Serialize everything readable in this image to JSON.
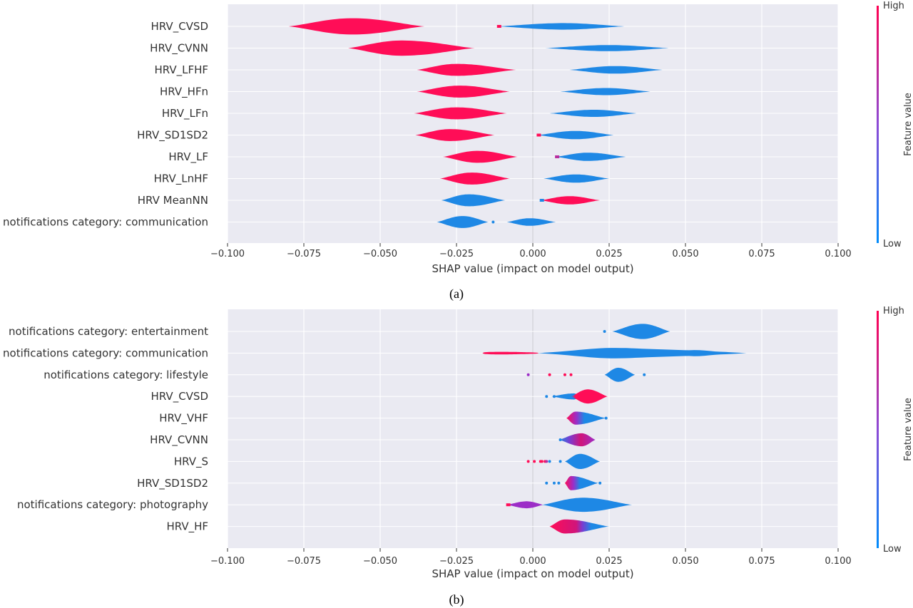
{
  "chart_data": [
    {
      "type": "violin",
      "caption": "(a)",
      "xlabel": "SHAP value (impact on model output)",
      "xlim": [
        -0.1,
        0.1
      ],
      "xticks": [
        -0.1,
        -0.075,
        -0.05,
        -0.025,
        0.0,
        0.025,
        0.05,
        0.075,
        0.1
      ],
      "xtick_labels": [
        "−0.100",
        "−0.075",
        "−0.050",
        "−0.025",
        "0.000",
        "0.025",
        "0.050",
        "0.075",
        "0.100"
      ],
      "colorbar": {
        "label": "Feature value",
        "high": "High",
        "low": "Low",
        "high_color": "#ff0052",
        "low_color": "#008bfb"
      },
      "features": [
        {
          "name": "HRV_CVSD",
          "parts": [
            {
              "min": -0.08,
              "max": -0.0355,
              "peak": -0.059,
              "width": 0.75,
              "color": "#ff0d57"
            },
            {
              "min": -0.0115,
              "max": 0.03,
              "peak": 0.01,
              "width": 0.3,
              "color": "#1e88e5",
              "tip": "#ff0d57"
            }
          ]
        },
        {
          "name": "HRV_CVNN",
          "parts": [
            {
              "min": -0.0605,
              "max": -0.019,
              "peak": -0.043,
              "width": 0.7,
              "color": "#ff0d57"
            },
            {
              "min": 0.004,
              "max": 0.0445,
              "peak": 0.025,
              "width": 0.28,
              "color": "#1e88e5"
            }
          ]
        },
        {
          "name": "HRV_LFHF",
          "parts": [
            {
              "min": -0.038,
              "max": -0.0055,
              "peak": -0.025,
              "width": 0.55,
              "color": "#ff0d57"
            },
            {
              "min": 0.012,
              "max": 0.0425,
              "peak": 0.027,
              "width": 0.35,
              "color": "#1e88e5"
            }
          ]
        },
        {
          "name": "HRV_HFn",
          "parts": [
            {
              "min": -0.038,
              "max": -0.0075,
              "peak": -0.024,
              "width": 0.55,
              "color": "#ff0d57"
            },
            {
              "min": 0.009,
              "max": 0.0385,
              "peak": 0.024,
              "width": 0.33,
              "color": "#1e88e5"
            }
          ]
        },
        {
          "name": "HRV_LFn",
          "parts": [
            {
              "min": -0.039,
              "max": -0.0085,
              "peak": -0.025,
              "width": 0.55,
              "color": "#ff0d57"
            },
            {
              "min": 0.0055,
              "max": 0.034,
              "peak": 0.02,
              "width": 0.33,
              "color": "#1e88e5"
            }
          ]
        },
        {
          "name": "HRV_SD1SD2",
          "parts": [
            {
              "min": -0.0385,
              "max": -0.0125,
              "peak": -0.027,
              "width": 0.55,
              "color": "#ff0d57"
            },
            {
              "min": 0.0015,
              "max": 0.0265,
              "peak": 0.014,
              "width": 0.38,
              "color": "#1e88e5",
              "tip": "#ff0d57"
            }
          ]
        },
        {
          "name": "HRV_LF",
          "parts": [
            {
              "min": -0.0295,
              "max": -0.005,
              "peak": -0.018,
              "width": 0.55,
              "color": "#ff0d57"
            },
            {
              "min": 0.0075,
              "max": 0.0305,
              "peak": 0.018,
              "width": 0.38,
              "color": "#1e88e5",
              "tip": "#b82d9f"
            }
          ]
        },
        {
          "name": "HRV_LnHF",
          "parts": [
            {
              "min": -0.0305,
              "max": -0.0075,
              "peak": -0.02,
              "width": 0.55,
              "color": "#ff0d57"
            },
            {
              "min": 0.0035,
              "max": 0.025,
              "peak": 0.014,
              "width": 0.38,
              "color": "#1e88e5"
            }
          ]
        },
        {
          "name": "HRV MeanNN",
          "parts": [
            {
              "min": -0.03,
              "max": -0.009,
              "peak": -0.021,
              "width": 0.55,
              "color": "#1e88e5"
            },
            {
              "min": 0.0025,
              "max": 0.022,
              "peak": 0.012,
              "width": 0.38,
              "color": "#ff0d57",
              "tip": "#1e88e5"
            }
          ]
        },
        {
          "name": "notifications category: communication",
          "parts": [
            {
              "min": -0.0315,
              "max": -0.0145,
              "peak": -0.023,
              "width": 0.55,
              "color": "#1e88e5"
            },
            {
              "min": -0.0085,
              "max": 0.0075,
              "peak": -0.001,
              "width": 0.35,
              "color": "#1e88e5"
            }
          ],
          "dots": [
            {
              "x": -0.013,
              "color": "#1e88e5"
            }
          ]
        }
      ]
    },
    {
      "type": "violin",
      "caption": "(b)",
      "xlabel": "SHAP value (impact on model output)",
      "xlim": [
        -0.1,
        0.1
      ],
      "xticks": [
        -0.1,
        -0.075,
        -0.05,
        -0.025,
        0.0,
        0.025,
        0.05,
        0.075,
        0.1
      ],
      "xtick_labels": [
        "−0.100",
        "−0.075",
        "−0.050",
        "−0.025",
        "0.000",
        "0.025",
        "0.050",
        "0.075",
        "0.100"
      ],
      "colorbar": {
        "label": "Feature value",
        "high": "High",
        "low": "Low",
        "high_color": "#ff0052",
        "low_color": "#008bfb"
      },
      "features": [
        {
          "name": "notifications category: entertainment",
          "parts": [
            {
              "min": 0.026,
              "max": 0.045,
              "peak": 0.036,
              "width": 0.7,
              "color": "#1e88e5"
            }
          ],
          "dots": [
            {
              "x": 0.0235,
              "color": "#1e88e5"
            }
          ]
        },
        {
          "name": "notifications category: communication",
          "parts": [
            {
              "min": -0.0165,
              "max": 0.002,
              "peak": -0.012,
              "width": 0.15,
              "color": "#ff0d57",
              "shape": "flat"
            },
            {
              "min": 0.0015,
              "max": 0.07,
              "peak": 0.022,
              "width": 0.55,
              "color": "#1e88e5",
              "shape": "wide"
            }
          ]
        },
        {
          "name": "notifications category: lifestyle",
          "parts": [
            {
              "min": 0.0235,
              "max": 0.0335,
              "peak": 0.028,
              "width": 0.65,
              "color": "#1e88e5"
            }
          ],
          "dots": [
            {
              "x": -0.0015,
              "color": "#9c2dc7"
            },
            {
              "x": 0.0055,
              "color": "#ff0d57"
            },
            {
              "x": 0.0105,
              "color": "#ff0d57"
            },
            {
              "x": 0.0125,
              "color": "#ff0d57"
            },
            {
              "x": 0.0365,
              "color": "#1e88e5"
            }
          ]
        },
        {
          "name": "HRV_CVSD",
          "parts": [
            {
              "min": 0.006,
              "max": 0.0155,
              "peak": 0.0135,
              "width": 0.28,
              "color": "#1e88e5"
            },
            {
              "min": 0.0125,
              "max": 0.0245,
              "peak": 0.018,
              "width": 0.65,
              "color": "#ff0d57",
              "grad": true
            }
          ],
          "dots": [
            {
              "x": 0.0045,
              "color": "#1e88e5"
            },
            {
              "x": 0.007,
              "color": "#1e88e5"
            }
          ]
        },
        {
          "name": "HRV_VHF",
          "parts": [
            {
              "min": 0.011,
              "max": 0.024,
              "peak": 0.014,
              "width": 0.6,
              "color": "#1e88e5",
              "grad": true,
              "reverse": true
            }
          ],
          "dots": [
            {
              "x": 0.024,
              "color": "#1e88e5"
            }
          ]
        },
        {
          "name": "HRV_CVNN",
          "parts": [
            {
              "min": 0.0085,
              "max": 0.0205,
              "peak": 0.016,
              "width": 0.6,
              "color": "#c0156f",
              "grad": true
            }
          ],
          "dots": [
            {
              "x": 0.009,
              "color": "#1e88e5"
            }
          ]
        },
        {
          "name": "HRV_S",
          "parts": [
            {
              "min": 0.0105,
              "max": 0.022,
              "peak": 0.0155,
              "width": 0.7,
              "color": "#1e88e5"
            }
          ],
          "dots": [
            {
              "x": -0.0015,
              "color": "#ff0d57"
            },
            {
              "x": 0.0005,
              "color": "#ff0d57"
            },
            {
              "x": 0.0025,
              "color": "#ff0d57"
            },
            {
              "x": 0.003,
              "color": "#ff0d57"
            },
            {
              "x": 0.004,
              "color": "#ff0d57"
            },
            {
              "x": 0.0045,
              "color": "#b82d9f"
            },
            {
              "x": 0.0055,
              "color": "#1e88e5"
            },
            {
              "x": 0.009,
              "color": "#1e88e5"
            }
          ]
        },
        {
          "name": "HRV_SD1SD2",
          "parts": [
            {
              "min": 0.0105,
              "max": 0.0215,
              "peak": 0.0125,
              "width": 0.65,
              "color": "#1e88e5",
              "grad": true,
              "reverse": true
            }
          ],
          "dots": [
            {
              "x": 0.0045,
              "color": "#1e88e5"
            },
            {
              "x": 0.007,
              "color": "#1e88e5"
            },
            {
              "x": 0.0085,
              "color": "#1e88e5"
            },
            {
              "x": 0.022,
              "color": "#1e88e5"
            }
          ]
        },
        {
          "name": "notifications category: photography",
          "parts": [
            {
              "min": -0.0085,
              "max": 0.0035,
              "peak": -0.002,
              "width": 0.32,
              "color": "#9c2dc7",
              "tip": "#ff0d57"
            },
            {
              "min": 0.003,
              "max": 0.0325,
              "peak": 0.0165,
              "width": 0.65,
              "color": "#1e88e5"
            }
          ]
        },
        {
          "name": "HRV_HF",
          "parts": [
            {
              "min": 0.0055,
              "max": 0.025,
              "peak": 0.0105,
              "width": 0.65,
              "color": "#ff0d57",
              "grad": true
            }
          ]
        }
      ]
    }
  ]
}
